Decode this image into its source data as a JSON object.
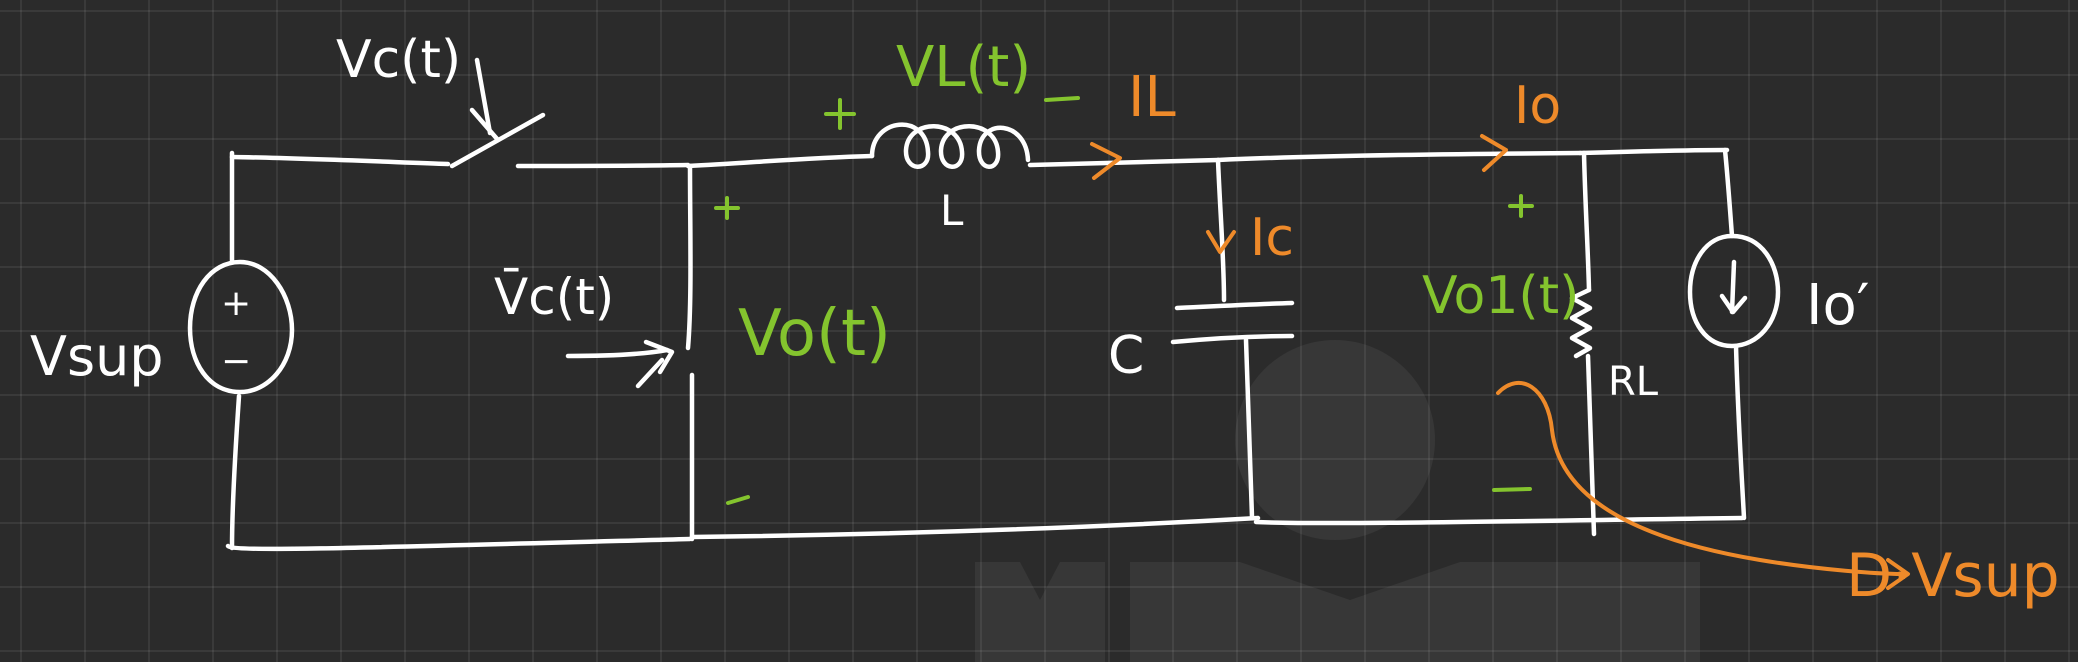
{
  "labels": {
    "vc": "Vc(t)",
    "vc_bar": "V̄c(t)",
    "vsup": "Vsup",
    "source_plus": "+",
    "source_minus": "−",
    "vl": "VL(t)",
    "vl_plus": "+",
    "vl_minus": "_",
    "il": "IL",
    "inductor": "L",
    "vo_plus": "+",
    "vo": "Vo(t)",
    "vo_minus": "-",
    "ic": "Ic",
    "capacitor": "C",
    "io": "Io",
    "vo1_plus": "+",
    "vo1": "Vo1(t)",
    "vo1_minus": "−",
    "rl": "RL",
    "io_prime": "Io′",
    "dvsup": "D·Vsup"
  },
  "colors": {
    "wire": "#ffffff",
    "voltage": "#84c42e",
    "current": "#ee8a2a",
    "background": "#2b2b2b"
  }
}
